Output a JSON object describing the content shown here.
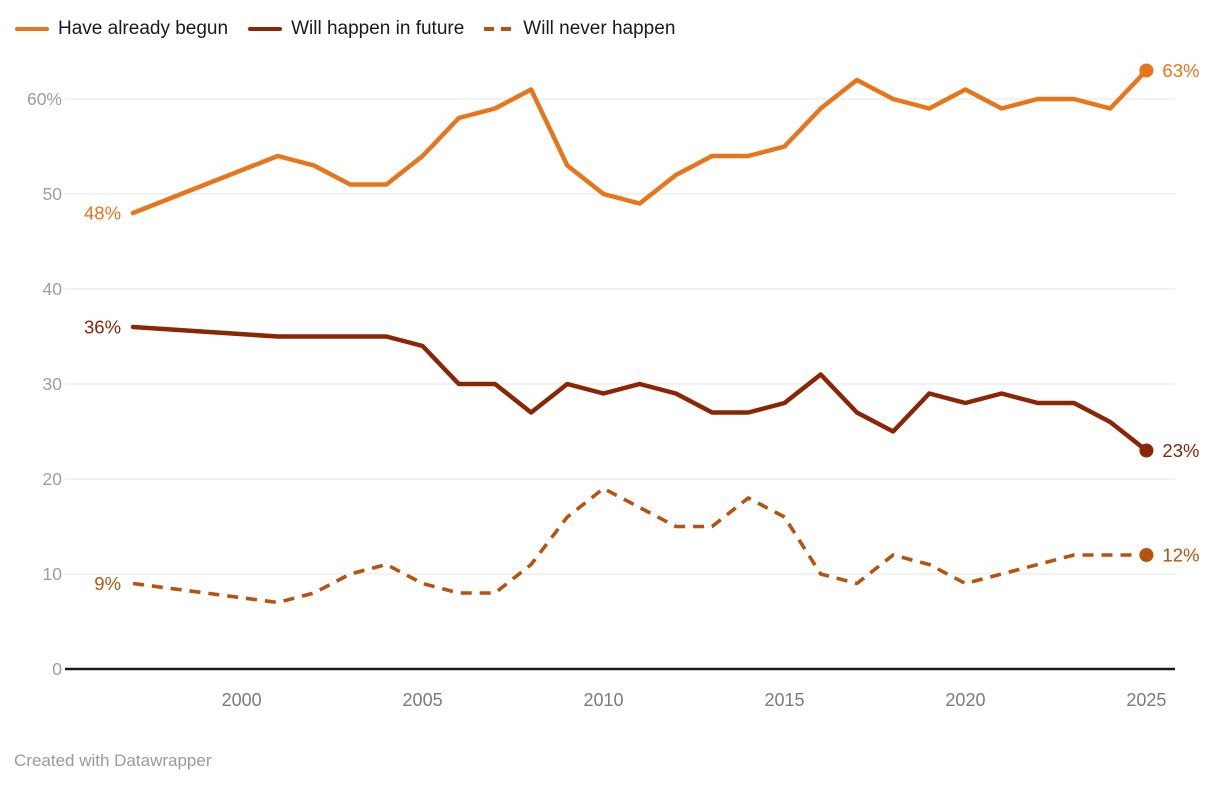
{
  "legend": {
    "items": [
      {
        "label": "Have already begun",
        "color": "#E8751A",
        "style": "solid"
      },
      {
        "label": "Will happen in future",
        "color": "#8B2605",
        "style": "solid"
      },
      {
        "label": "Will never happen",
        "color": "#B5530F",
        "style": "dashed"
      }
    ]
  },
  "footer": {
    "credit": "Created with Datawrapper"
  },
  "chart_data": {
    "type": "line",
    "x": [
      1997,
      2001,
      2002,
      2003,
      2004,
      2005,
      2006,
      2007,
      2008,
      2009,
      2010,
      2011,
      2012,
      2013,
      2014,
      2015,
      2016,
      2017,
      2018,
      2019,
      2020,
      2021,
      2022,
      2023,
      2024,
      2025
    ],
    "series": [
      {
        "name": "Have already begun",
        "color": "#E8751A",
        "dash": false,
        "start_label": "48%",
        "end_label": "63%",
        "values": [
          48,
          54,
          53,
          51,
          51,
          54,
          58,
          59,
          61,
          53,
          50,
          49,
          52,
          54,
          54,
          55,
          59,
          62,
          60,
          59,
          61,
          59,
          60,
          60,
          59,
          63
        ]
      },
      {
        "name": "Will happen in future",
        "color": "#8B2605",
        "dash": false,
        "start_label": "36%",
        "end_label": "23%",
        "values": [
          36,
          35,
          35,
          35,
          35,
          34,
          30,
          30,
          27,
          30,
          29,
          30,
          29,
          27,
          27,
          28,
          31,
          27,
          25,
          29,
          28,
          29,
          28,
          28,
          26,
          23
        ]
      },
      {
        "name": "Will never happen",
        "color": "#B5530F",
        "dash": true,
        "start_label": "9%",
        "end_label": "12%",
        "values": [
          9,
          7,
          8,
          10,
          11,
          9,
          8,
          8,
          11,
          16,
          19,
          17,
          15,
          15,
          18,
          16,
          10,
          9,
          12,
          11,
          9,
          10,
          11,
          12,
          12,
          12
        ]
      }
    ],
    "title": "",
    "xlabel": "",
    "ylabel": "",
    "x_ticks": [
      {
        "value": 2000,
        "label": "2000"
      },
      {
        "value": 2005,
        "label": "2005"
      },
      {
        "value": 2010,
        "label": "2010"
      },
      {
        "value": 2015,
        "label": "2015"
      },
      {
        "value": 2020,
        "label": "2020"
      },
      {
        "value": 2025,
        "label": "2025"
      }
    ],
    "y_ticks": [
      {
        "value": 60,
        "label": "60%"
      },
      {
        "value": 50,
        "label": "50"
      },
      {
        "value": 40,
        "label": "40"
      },
      {
        "value": 30,
        "label": "30"
      },
      {
        "value": 20,
        "label": "20"
      },
      {
        "value": 10,
        "label": "10"
      },
      {
        "value": 0,
        "label": "0"
      }
    ],
    "xlim": [
      1995.12,
      2025.79
    ],
    "ylim": [
      0,
      60
    ],
    "grid": true,
    "legend_position": "top"
  }
}
